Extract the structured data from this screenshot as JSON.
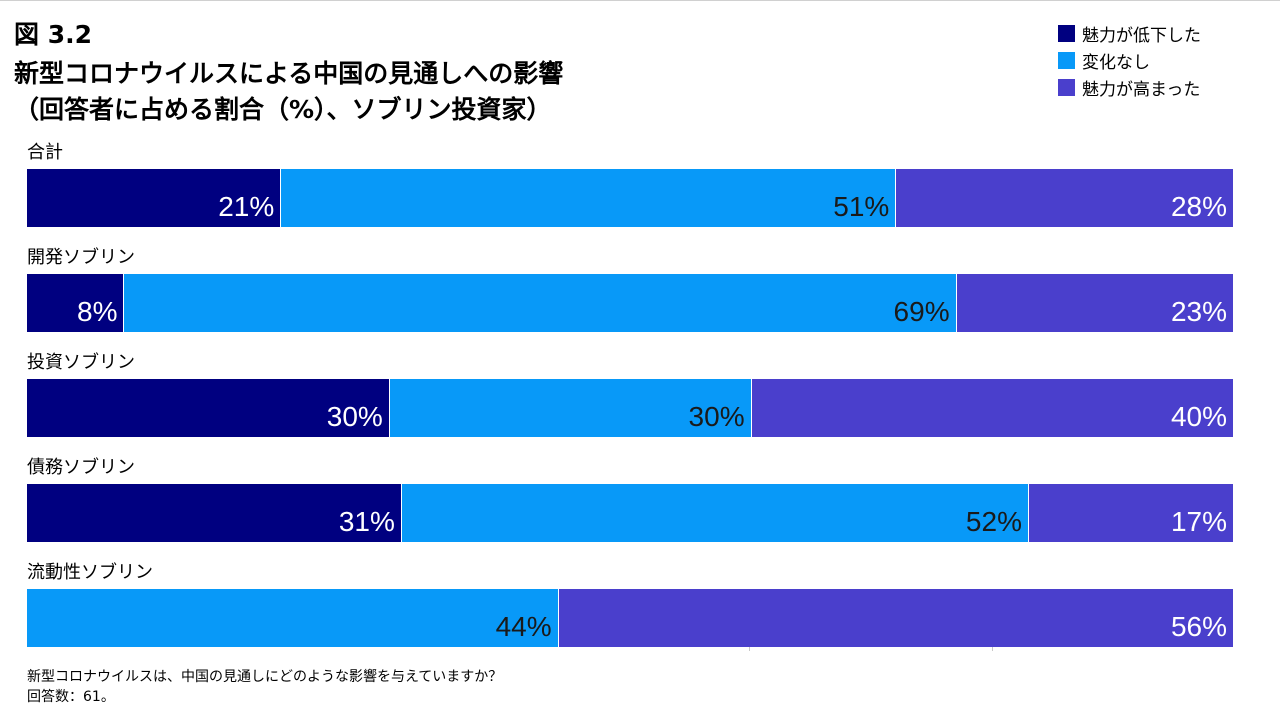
{
  "figure_label": "図 3.2",
  "title_line1": "新型コロナウイルスによる中国の見通しへの影響",
  "title_line2": "（回答者に占める割合（%）、ソブリン投資家）",
  "footnote_line1": "新型コロナウイルスは、中国の見通しにどのような影響を与えていますか？",
  "footnote_line2": "回答数：61。",
  "chart_data": {
    "type": "bar",
    "orientation": "horizontal",
    "stacked": true,
    "title": "新型コロナウイルスによる中国の見通しへの影響",
    "xlim": [
      0,
      100
    ],
    "legend_position": "top-right",
    "categories": [
      "合計",
      "開発ソブリン",
      "投資ソブリン",
      "債務ソブリン",
      "流動性ソブリン"
    ],
    "series": [
      {
        "name": "魅力が低下した",
        "color": "#000080",
        "label_color": "#ffffff",
        "values": [
          21,
          8,
          30,
          31,
          0
        ],
        "labels": [
          "21%",
          "8%",
          "30%",
          "31%",
          ""
        ]
      },
      {
        "name": "変化なし",
        "color": "#0899f8",
        "label_color": "#1a1a1a",
        "values": [
          51,
          69,
          30,
          52,
          44
        ],
        "labels": [
          "51%",
          "69%",
          "30%",
          "52%",
          "44%"
        ]
      },
      {
        "name": "魅力が高まった",
        "color": "#4a3fcc",
        "label_color": "#ffffff",
        "values": [
          28,
          23,
          40,
          17,
          56
        ],
        "labels": [
          "28%",
          "23%",
          "40%",
          "17%",
          "56%"
        ]
      }
    ]
  }
}
